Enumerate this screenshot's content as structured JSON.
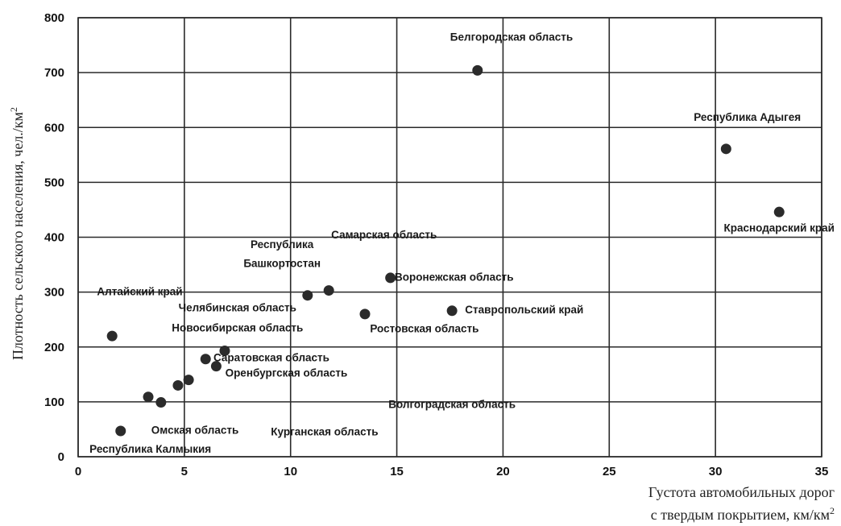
{
  "chart_data": {
    "type": "scatter",
    "title": "",
    "xlabel_line1": "Густота автомобильных дорог",
    "xlabel_line2": "с твердым покрытием,  км/км",
    "xlabel_sup": "2",
    "ylabel": "Плотность сельского населения, чел./км",
    "ylabel_sup": "2",
    "xlim": [
      0,
      35
    ],
    "ylim": [
      0,
      800
    ],
    "xticks": [
      0,
      5,
      10,
      15,
      20,
      25,
      30,
      35
    ],
    "yticks": [
      0,
      100,
      200,
      300,
      400,
      500,
      600,
      700,
      800
    ],
    "grid": true,
    "points": [
      {
        "x": 1.6,
        "y": 220
      },
      {
        "x": 2.0,
        "y": 47
      },
      {
        "x": 3.3,
        "y": 109
      },
      {
        "x": 3.9,
        "y": 99
      },
      {
        "x": 4.7,
        "y": 130
      },
      {
        "x": 5.2,
        "y": 140
      },
      {
        "x": 6.0,
        "y": 178
      },
      {
        "x": 6.5,
        "y": 165
      },
      {
        "x": 6.9,
        "y": 193
      },
      {
        "x": 10.8,
        "y": 294
      },
      {
        "x": 11.8,
        "y": 303
      },
      {
        "x": 13.5,
        "y": 260
      },
      {
        "x": 14.7,
        "y": 326
      },
      {
        "x": 17.6,
        "y": 266
      },
      {
        "x": 18.8,
        "y": 704
      },
      {
        "x": 30.5,
        "y": 561
      },
      {
        "x": 33.0,
        "y": 446
      }
    ],
    "annotations": [
      {
        "text": "Белгородская область",
        "x": 20.4,
        "y": 758
      },
      {
        "text": "Республика Адыгея",
        "x": 31.5,
        "y": 612
      },
      {
        "text": "Краснодарский край",
        "x": 33.0,
        "y": 410
      },
      {
        "text": "Самарская область",
        "x": 14.4,
        "y": 398
      },
      {
        "text": "Республика",
        "x": 9.6,
        "y": 380
      },
      {
        "text": "Башкортостан",
        "x": 9.6,
        "y": 346
      },
      {
        "text": "Воронежская область",
        "x": 17.7,
        "y": 321
      },
      {
        "text": "Алтайский край",
        "x": 2.9,
        "y": 294
      },
      {
        "text": "Челябинская область",
        "x": 7.5,
        "y": 265
      },
      {
        "text": "Ставропольский край",
        "x": 21.0,
        "y": 261
      },
      {
        "text": "Новосибирская область",
        "x": 7.5,
        "y": 228
      },
      {
        "text": "Ростовская область",
        "x": 16.3,
        "y": 227
      },
      {
        "text": "Саратовская область",
        "x": 9.1,
        "y": 174
      },
      {
        "text": "Оренбургская область",
        "x": 9.8,
        "y": 146
      },
      {
        "text": "Волгоградская область",
        "x": 17.6,
        "y": 89
      },
      {
        "text": "Омская область",
        "x": 5.5,
        "y": 42
      },
      {
        "text": "Курганская область",
        "x": 11.6,
        "y": 39
      },
      {
        "text": "Республика Калмыкия",
        "x": 3.4,
        "y": 7
      }
    ]
  }
}
